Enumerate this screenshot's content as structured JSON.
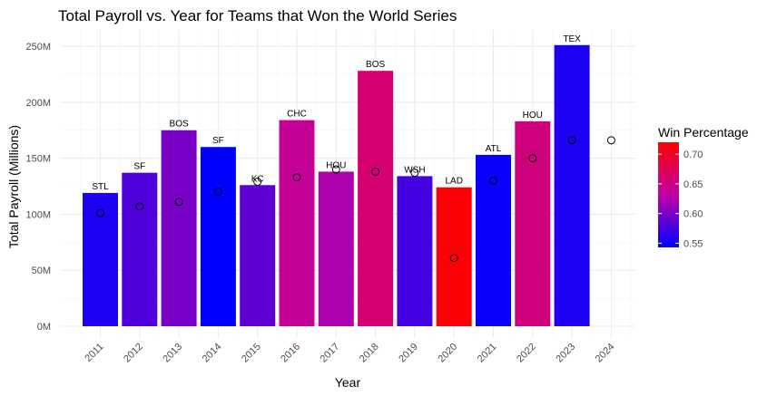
{
  "chart_data": {
    "type": "bar",
    "title": "Total Payroll vs. Year for Teams that Won the World Series",
    "xlabel": "Year",
    "ylabel": "Total Payroll (Millions)",
    "ylim": [
      0,
      250
    ],
    "yticks": [
      0,
      50,
      100,
      150,
      200,
      250
    ],
    "ytick_labels": [
      "0M",
      "50M",
      "100M",
      "150M",
      "200M",
      "250M"
    ],
    "grid": true,
    "categories": [
      "2011",
      "2012",
      "2013",
      "2014",
      "2015",
      "2016",
      "2017",
      "2018",
      "2019",
      "2020",
      "2021",
      "2022",
      "2023",
      "2024"
    ],
    "bar_labels": [
      "STL",
      "SF",
      "BOS",
      "SF",
      "KC",
      "CHC",
      "HOU",
      "BOS",
      "WSH",
      "LAD",
      "ATL",
      "HOU",
      "TEX",
      ""
    ],
    "values": [
      119,
      137,
      175,
      160,
      126,
      184,
      138,
      228,
      134,
      124,
      153,
      183,
      251,
      null
    ],
    "win_percentage": [
      0.556,
      0.58,
      0.599,
      0.543,
      0.586,
      0.64,
      0.623,
      0.66,
      0.574,
      0.717,
      0.547,
      0.654,
      0.556,
      null
    ],
    "points": [
      101,
      107,
      111,
      120,
      129,
      133,
      140,
      138,
      137,
      61,
      130,
      150,
      166,
      166
    ],
    "legend": {
      "title": "Win Percentage",
      "position": "right",
      "min": 0.543,
      "max": 0.72,
      "ticks": [
        0.55,
        0.6,
        0.65,
        0.7
      ],
      "tick_labels": [
        "0.55",
        "0.60",
        "0.65",
        "0.70"
      ],
      "low_color": "#0000ff",
      "high_color": "#ff0000"
    },
    "colors": {
      "point_stroke": "#000000",
      "grid_major": "#ebebeb",
      "grid_minor": "#f5f5f5"
    }
  }
}
